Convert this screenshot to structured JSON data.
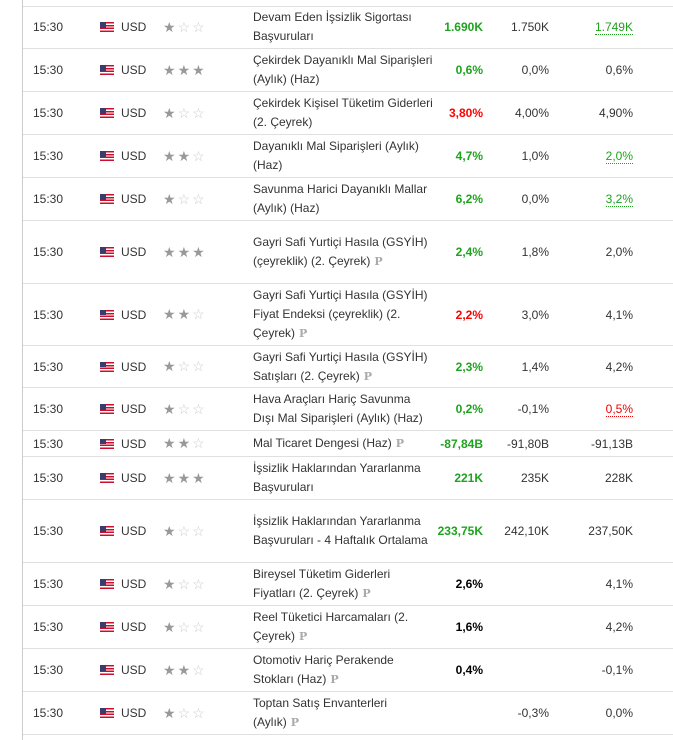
{
  "colors": {
    "positive": "#1ea31e",
    "negative": "#ff0000"
  },
  "rows": [
    {
      "time": "15:30",
      "currency": "USD",
      "importance": 1,
      "event": "Devam Eden İşsizlik Sigortası Başvuruları",
      "p": false,
      "actual": "1.690K",
      "actual_color": "green",
      "forecast": "1.750K",
      "previous": "1.749K",
      "previous_style": "ug",
      "h": 43
    },
    {
      "time": "15:30",
      "currency": "USD",
      "importance": 3,
      "event": "Çekirdek Dayanıklı Mal Siparişleri (Aylık) (Haz)",
      "p": false,
      "actual": "0,6%",
      "actual_color": "green",
      "forecast": "0,0%",
      "previous": "0,6%",
      "previous_style": "",
      "h": 43
    },
    {
      "time": "15:30",
      "currency": "USD",
      "importance": 1,
      "event": "Çekirdek Kişisel Tüketim Giderleri (2. Çeyrek)",
      "p": false,
      "actual": "3,80%",
      "actual_color": "red",
      "forecast": "4,00%",
      "previous": "4,90%",
      "previous_style": "",
      "h": 43
    },
    {
      "time": "15:30",
      "currency": "USD",
      "importance": 2,
      "event": "Dayanıklı Mal Siparişleri (Aylık) (Haz)",
      "p": false,
      "actual": "4,7%",
      "actual_color": "green",
      "forecast": "1,0%",
      "previous": "2,0%",
      "previous_style": "ug",
      "h": 43
    },
    {
      "time": "15:30",
      "currency": "USD",
      "importance": 1,
      "event": "Savunma Harici Dayanıklı Mallar (Aylık) (Haz)",
      "p": false,
      "actual": "6,2%",
      "actual_color": "green",
      "forecast": "0,0%",
      "previous": "3,2%",
      "previous_style": "ug",
      "h": 43
    },
    {
      "time": "15:30",
      "currency": "USD",
      "importance": 3,
      "event": "Gayri Safi Yurtiçi Hasıla (GSYİH) (çeyreklik) (2. Çeyrek)",
      "p": true,
      "actual": "2,4%",
      "actual_color": "green",
      "forecast": "1,8%",
      "previous": "2,0%",
      "previous_style": "",
      "h": 63
    },
    {
      "time": "15:30",
      "currency": "USD",
      "importance": 2,
      "event": "Gayri Safi Yurtiçi Hasıla (GSYİH) Fiyat Endeksi (çeyreklik) (2. Çeyrek)",
      "p": true,
      "actual": "2,2%",
      "actual_color": "red",
      "forecast": "3,0%",
      "previous": "4,1%",
      "previous_style": "",
      "h": 62
    },
    {
      "time": "15:30",
      "currency": "USD",
      "importance": 1,
      "event": "Gayri Safi Yurtiçi Hasıla (GSYİH) Satışları (2. Çeyrek)",
      "p": true,
      "actual": "2,3%",
      "actual_color": "green",
      "forecast": "1,4%",
      "previous": "4,2%",
      "previous_style": "",
      "h": 42
    },
    {
      "time": "15:30",
      "currency": "USD",
      "importance": 1,
      "event": "Hava Araçları Hariç Savunma Dışı Mal Siparişleri (Aylık) (Haz)",
      "p": false,
      "actual": "0,2%",
      "actual_color": "green",
      "forecast": "-0,1%",
      "previous": "0,5%",
      "previous_style": "ur",
      "h": 43
    },
    {
      "time": "15:30",
      "currency": "USD",
      "importance": 2,
      "event": "Mal Ticaret Dengesi (Haz)",
      "p": true,
      "actual": "-87,84B",
      "actual_color": "green",
      "forecast": "-91,80B",
      "previous": "-91,13B",
      "previous_style": "",
      "h": 26
    },
    {
      "time": "15:30",
      "currency": "USD",
      "importance": 3,
      "event": "İşsizlik Haklarından Yararlanma Başvuruları",
      "p": false,
      "actual": "221K",
      "actual_color": "green",
      "forecast": "235K",
      "previous": "228K",
      "previous_style": "",
      "h": 43
    },
    {
      "time": "15:30",
      "currency": "USD",
      "importance": 1,
      "event": "İşsizlik Haklarından Yararlanma Başvuruları - 4 Haftalık Ortalama",
      "p": false,
      "actual": "233,75K",
      "actual_color": "green",
      "forecast": "242,10K",
      "previous": "237,50K",
      "previous_style": "",
      "h": 63
    },
    {
      "time": "15:30",
      "currency": "USD",
      "importance": 1,
      "event": "Bireysel Tüketim Giderleri Fiyatları (2. Çeyrek)",
      "p": true,
      "actual": "2,6%",
      "actual_color": "black",
      "forecast": "",
      "previous": "4,1%",
      "previous_style": "",
      "h": 43
    },
    {
      "time": "15:30",
      "currency": "USD",
      "importance": 1,
      "event": "Reel Tüketici Harcamaları (2. Çeyrek)",
      "p": true,
      "actual": "1,6%",
      "actual_color": "black",
      "forecast": "",
      "previous": "4,2%",
      "previous_style": "",
      "h": 43
    },
    {
      "time": "15:30",
      "currency": "USD",
      "importance": 2,
      "event": "Otomotiv Hariç Perakende Stokları (Haz)",
      "p": true,
      "actual": "0,4%",
      "actual_color": "black",
      "forecast": "",
      "previous": "-0,1%",
      "previous_style": "",
      "h": 43
    },
    {
      "time": "15:30",
      "currency": "USD",
      "importance": 1,
      "event": "Toptan Satış Envanterleri (Aylık)",
      "p": true,
      "actual": "",
      "actual_color": "black",
      "forecast": "-0,3%",
      "previous": "0,0%",
      "previous_style": "",
      "h": 43
    }
  ],
  "p_label": "P"
}
